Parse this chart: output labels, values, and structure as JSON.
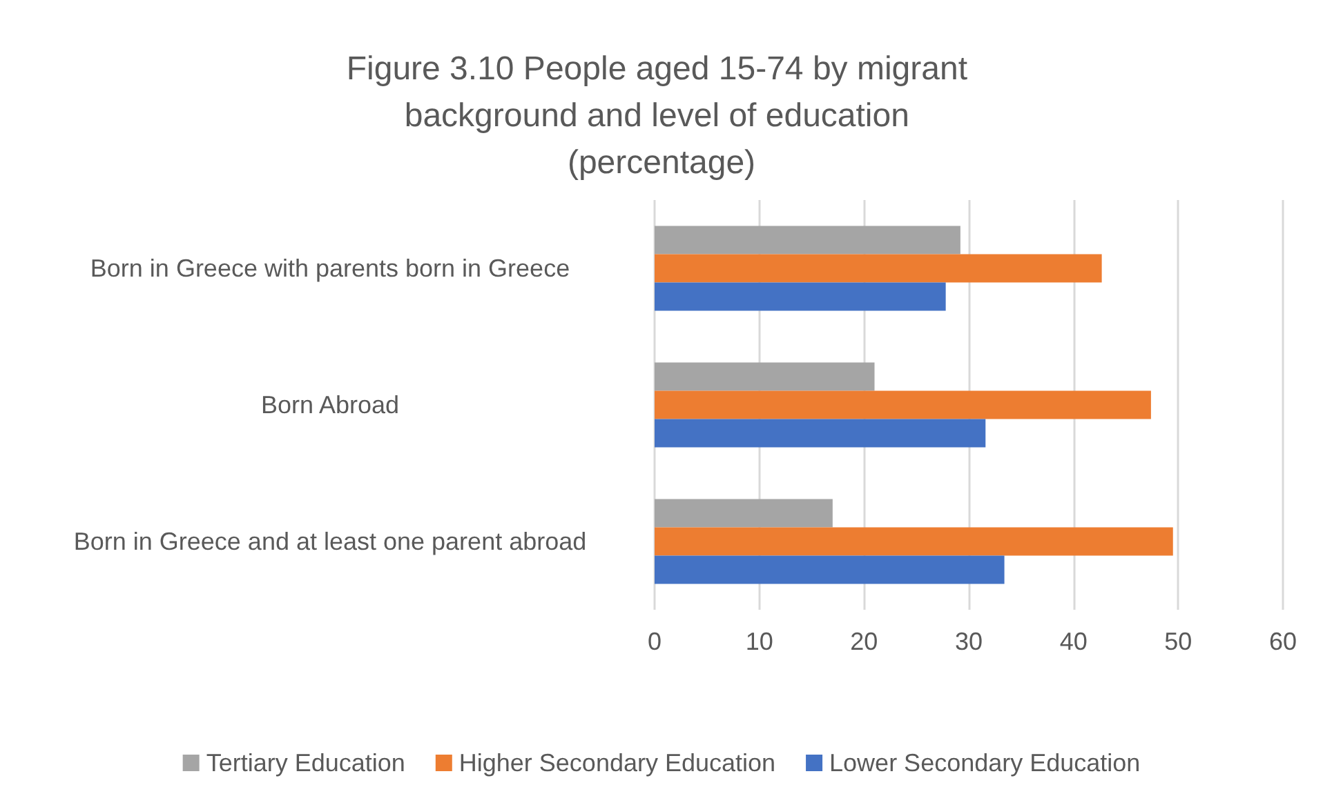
{
  "chart_data": {
    "type": "bar",
    "orientation": "horizontal",
    "title": "Figure 3.10 People aged 15-74 by migrant background and level of education (percentage)",
    "categories": [
      "Born in Greece with parents born in Greece",
      "Born Abroad",
      "Born in Greece and at least one parent abroad"
    ],
    "series": [
      {
        "name": "Tertiary Education",
        "color": "#a5a5a5",
        "values": [
          29.2,
          21.0,
          17.0
        ]
      },
      {
        "name": "Higher Secondary Education",
        "color": "#ed7d31",
        "values": [
          42.7,
          47.4,
          49.5
        ]
      },
      {
        "name": "Lower Secondary Education",
        "color": "#4472c4",
        "values": [
          27.8,
          31.6,
          33.4
        ]
      }
    ],
    "xlim": [
      0,
      60
    ],
    "xticks": [
      0,
      10,
      20,
      30,
      40,
      50,
      60
    ],
    "grid": "x",
    "legend": "bottom"
  }
}
